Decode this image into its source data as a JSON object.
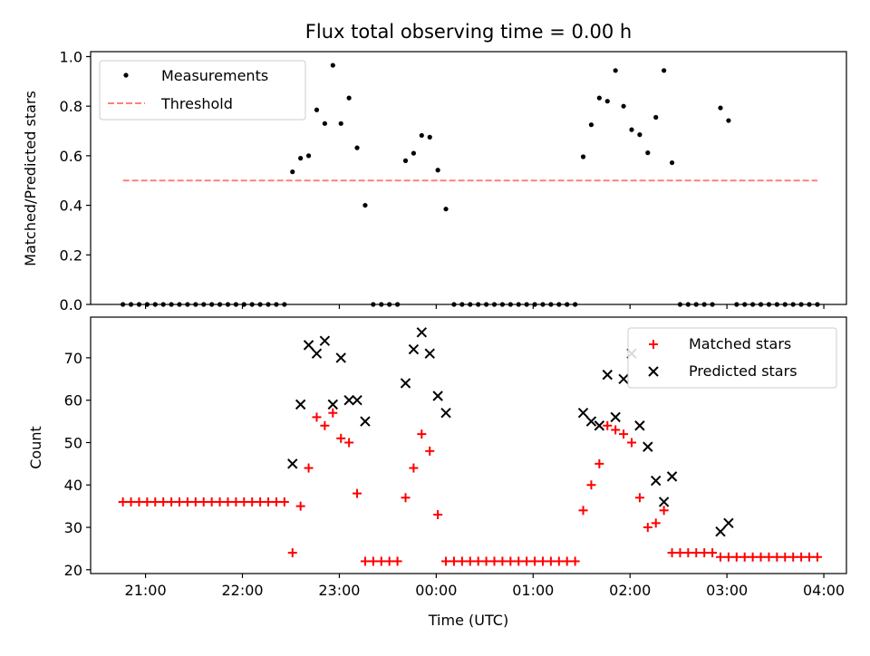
{
  "chart_data": [
    {
      "type": "scatter",
      "title": "Flux total observing time = 0.00 h",
      "xlabel": "",
      "ylabel": "Matched/Predicted stars",
      "ylim": [
        0.0,
        1.02
      ],
      "xlim": [
        "20:26",
        "04:14"
      ],
      "yticks": [
        "0.0",
        "0.2",
        "0.4",
        "0.6",
        "0.8",
        "1.0"
      ],
      "xtick_times": [
        "21:00",
        "22:00",
        "23:00",
        "00:00",
        "01:00",
        "02:00",
        "03:00",
        "04:00"
      ],
      "legend_position": "upper left",
      "grid": false,
      "series": [
        {
          "name": "Measurements",
          "color": "#000000",
          "marker": "dot",
          "points": [
            [
              "20:46",
              0
            ],
            [
              "20:51",
              0
            ],
            [
              "20:56",
              0
            ],
            [
              "21:01",
              0
            ],
            [
              "21:06",
              0
            ],
            [
              "21:11",
              0
            ],
            [
              "21:16",
              0
            ],
            [
              "21:21",
              0
            ],
            [
              "21:26",
              0
            ],
            [
              "21:31",
              0
            ],
            [
              "21:36",
              0
            ],
            [
              "21:41",
              0
            ],
            [
              "21:46",
              0
            ],
            [
              "21:51",
              0
            ],
            [
              "21:56",
              0
            ],
            [
              "22:01",
              0
            ],
            [
              "22:06",
              0
            ],
            [
              "22:11",
              0
            ],
            [
              "22:16",
              0
            ],
            [
              "22:21",
              0
            ],
            [
              "22:26",
              0
            ],
            [
              "22:31",
              0.535
            ],
            [
              "22:36",
              0.59
            ],
            [
              "22:41",
              0.6
            ],
            [
              "22:46",
              0.785
            ],
            [
              "22:51",
              0.73
            ],
            [
              "22:56",
              0.965
            ],
            [
              "23:01",
              0.73
            ],
            [
              "23:06",
              0.833
            ],
            [
              "23:11",
              0.632
            ],
            [
              "23:16",
              0.4
            ],
            [
              "23:21",
              0
            ],
            [
              "23:26",
              0
            ],
            [
              "23:31",
              0
            ],
            [
              "23:36",
              0
            ],
            [
              "23:41",
              0.58
            ],
            [
              "23:46",
              0.61
            ],
            [
              "23:51",
              0.682
            ],
            [
              "23:56",
              0.675
            ],
            [
              "00:01",
              0.542
            ],
            [
              "00:06",
              0.385
            ],
            [
              "00:11",
              0
            ],
            [
              "00:16",
              0
            ],
            [
              "00:21",
              0
            ],
            [
              "00:26",
              0
            ],
            [
              "00:31",
              0
            ],
            [
              "00:36",
              0
            ],
            [
              "00:41",
              0
            ],
            [
              "00:46",
              0
            ],
            [
              "00:51",
              0
            ],
            [
              "00:56",
              0
            ],
            [
              "01:01",
              0
            ],
            [
              "01:06",
              0
            ],
            [
              "01:11",
              0
            ],
            [
              "01:16",
              0
            ],
            [
              "01:21",
              0
            ],
            [
              "01:26",
              0
            ],
            [
              "01:31",
              0.596
            ],
            [
              "01:36",
              0.725
            ],
            [
              "01:41",
              0.833
            ],
            [
              "01:46",
              0.82
            ],
            [
              "01:51",
              0.944
            ],
            [
              "01:56",
              0.8
            ],
            [
              "02:01",
              0.705
            ],
            [
              "02:06",
              0.685
            ],
            [
              "02:11",
              0.612
            ],
            [
              "02:16",
              0.755
            ],
            [
              "02:21",
              0.944
            ],
            [
              "02:26",
              0.572
            ],
            [
              "02:31",
              0
            ],
            [
              "02:36",
              0
            ],
            [
              "02:41",
              0
            ],
            [
              "02:46",
              0
            ],
            [
              "02:51",
              0
            ],
            [
              "02:56",
              0.793
            ],
            [
              "03:01",
              0.742
            ],
            [
              "03:06",
              0
            ],
            [
              "03:11",
              0
            ],
            [
              "03:16",
              0
            ],
            [
              "03:21",
              0
            ],
            [
              "03:26",
              0
            ],
            [
              "03:31",
              0
            ],
            [
              "03:36",
              0
            ],
            [
              "03:41",
              0
            ],
            [
              "03:46",
              0
            ],
            [
              "03:51",
              0
            ],
            [
              "03:56",
              0
            ]
          ]
        },
        {
          "name": "Threshold",
          "color": "#ff7f7f",
          "style": "dashed",
          "points": [
            [
              "20:46",
              0.5
            ],
            [
              "03:56",
              0.5
            ]
          ]
        }
      ]
    },
    {
      "type": "scatter",
      "title": "",
      "xlabel": "Time (UTC)",
      "ylabel": "Count",
      "ylim": [
        19.1,
        79.6
      ],
      "xlim": [
        "20:26",
        "04:14"
      ],
      "yticks": [
        "20",
        "30",
        "40",
        "50",
        "60",
        "70"
      ],
      "xtick_times": [
        "21:00",
        "22:00",
        "23:00",
        "00:00",
        "01:00",
        "02:00",
        "03:00",
        "04:00"
      ],
      "xtick_labels": [
        "21:00",
        "22:00",
        "23:00",
        "00:00",
        "01:00",
        "02:00",
        "03:00",
        "04:00"
      ],
      "legend_position": "upper right",
      "grid": false,
      "series": [
        {
          "name": "Matched stars",
          "color": "#ff0000",
          "marker": "plus",
          "points": [
            [
              "20:46",
              36
            ],
            [
              "20:51",
              36
            ],
            [
              "20:56",
              36
            ],
            [
              "21:01",
              36
            ],
            [
              "21:06",
              36
            ],
            [
              "21:11",
              36
            ],
            [
              "21:16",
              36
            ],
            [
              "21:21",
              36
            ],
            [
              "21:26",
              36
            ],
            [
              "21:31",
              36
            ],
            [
              "21:36",
              36
            ],
            [
              "21:41",
              36
            ],
            [
              "21:46",
              36
            ],
            [
              "21:51",
              36
            ],
            [
              "21:56",
              36
            ],
            [
              "22:01",
              36
            ],
            [
              "22:06",
              36
            ],
            [
              "22:11",
              36
            ],
            [
              "22:16",
              36
            ],
            [
              "22:21",
              36
            ],
            [
              "22:26",
              36
            ],
            [
              "22:31",
              24
            ],
            [
              "22:36",
              35
            ],
            [
              "22:41",
              44
            ],
            [
              "22:46",
              56
            ],
            [
              "22:51",
              54
            ],
            [
              "22:56",
              57
            ],
            [
              "23:01",
              51
            ],
            [
              "23:06",
              50
            ],
            [
              "23:11",
              38
            ],
            [
              "23:16",
              22
            ],
            [
              "23:21",
              22
            ],
            [
              "23:26",
              22
            ],
            [
              "23:31",
              22
            ],
            [
              "23:36",
              22
            ],
            [
              "23:41",
              37
            ],
            [
              "23:46",
              44
            ],
            [
              "23:51",
              52
            ],
            [
              "23:56",
              48
            ],
            [
              "00:01",
              33
            ],
            [
              "00:06",
              22
            ],
            [
              "00:11",
              22
            ],
            [
              "00:16",
              22
            ],
            [
              "00:21",
              22
            ],
            [
              "00:26",
              22
            ],
            [
              "00:31",
              22
            ],
            [
              "00:36",
              22
            ],
            [
              "00:41",
              22
            ],
            [
              "00:46",
              22
            ],
            [
              "00:51",
              22
            ],
            [
              "00:56",
              22
            ],
            [
              "01:01",
              22
            ],
            [
              "01:06",
              22
            ],
            [
              "01:11",
              22
            ],
            [
              "01:16",
              22
            ],
            [
              "01:21",
              22
            ],
            [
              "01:26",
              22
            ],
            [
              "01:31",
              34
            ],
            [
              "01:36",
              40
            ],
            [
              "01:41",
              45
            ],
            [
              "01:46",
              54
            ],
            [
              "01:51",
              53
            ],
            [
              "01:56",
              52
            ],
            [
              "02:01",
              50
            ],
            [
              "02:06",
              37
            ],
            [
              "02:11",
              30
            ],
            [
              "02:16",
              31
            ],
            [
              "02:21",
              34
            ],
            [
              "02:26",
              24
            ],
            [
              "02:31",
              24
            ],
            [
              "02:36",
              24
            ],
            [
              "02:41",
              24
            ],
            [
              "02:46",
              24
            ],
            [
              "02:51",
              24
            ],
            [
              "02:56",
              23
            ],
            [
              "03:01",
              23
            ],
            [
              "03:06",
              23
            ],
            [
              "03:11",
              23
            ],
            [
              "03:16",
              23
            ],
            [
              "03:21",
              23
            ],
            [
              "03:26",
              23
            ],
            [
              "03:31",
              23
            ],
            [
              "03:36",
              23
            ],
            [
              "03:41",
              23
            ],
            [
              "03:46",
              23
            ],
            [
              "03:51",
              23
            ],
            [
              "03:56",
              23
            ]
          ]
        },
        {
          "name": "Predicted stars",
          "color": "#000000",
          "marker": "x",
          "points": [
            [
              "22:31",
              45
            ],
            [
              "22:36",
              59
            ],
            [
              "22:41",
              73
            ],
            [
              "22:46",
              71
            ],
            [
              "22:51",
              74
            ],
            [
              "22:56",
              59
            ],
            [
              "23:01",
              70
            ],
            [
              "23:06",
              60
            ],
            [
              "23:11",
              60
            ],
            [
              "23:16",
              55
            ],
            [
              "23:41",
              64
            ],
            [
              "23:46",
              72
            ],
            [
              "23:51",
              76
            ],
            [
              "23:56",
              71
            ],
            [
              "00:01",
              61
            ],
            [
              "00:06",
              57
            ],
            [
              "01:31",
              57
            ],
            [
              "01:36",
              55
            ],
            [
              "01:41",
              54
            ],
            [
              "01:46",
              66
            ],
            [
              "01:51",
              56
            ],
            [
              "01:56",
              65
            ],
            [
              "02:01",
              71
            ],
            [
              "02:06",
              54
            ],
            [
              "02:11",
              49
            ],
            [
              "02:16",
              41
            ],
            [
              "02:21",
              36
            ],
            [
              "02:26",
              42
            ],
            [
              "02:56",
              29
            ],
            [
              "03:01",
              31
            ]
          ]
        }
      ]
    }
  ]
}
